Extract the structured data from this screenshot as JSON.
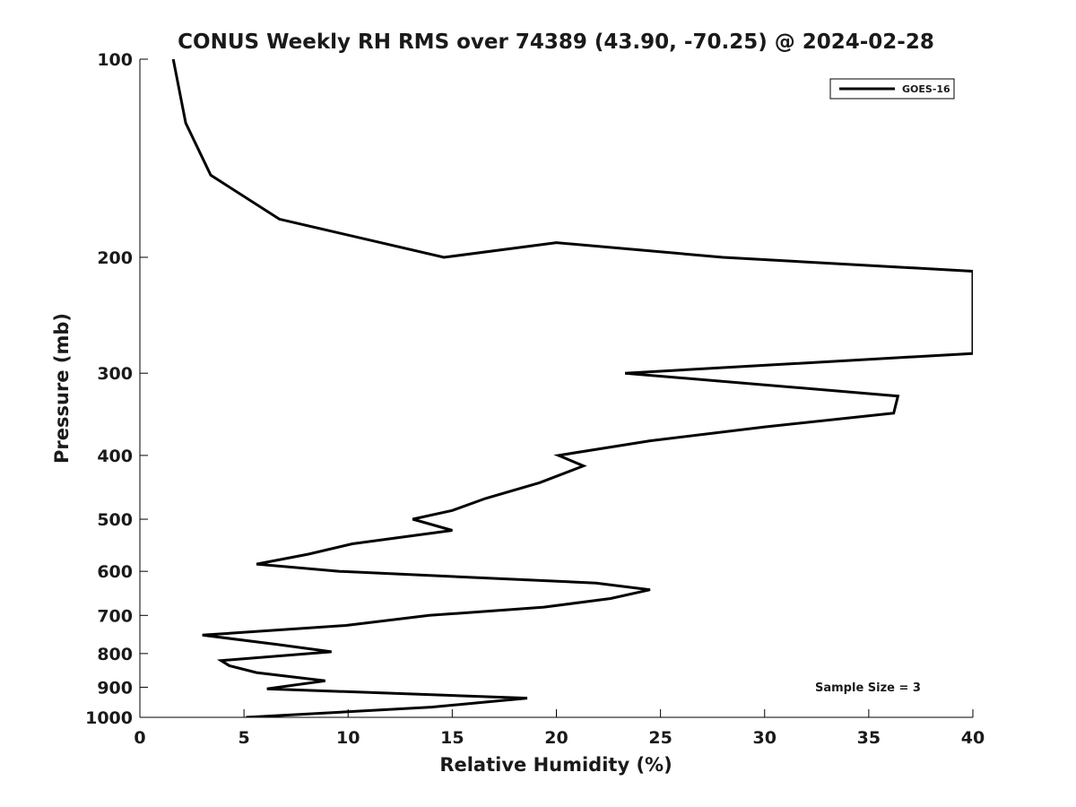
{
  "chart_data": {
    "type": "line",
    "title": "CONUS Weekly RH RMS over 74389 (43.90, -70.25) @ 2024-02-28",
    "xlabel": "Relative Humidity (%)",
    "ylabel": "Pressure (mb)",
    "xlim": [
      0,
      40
    ],
    "ylim": [
      100,
      1000
    ],
    "y_scale": "log",
    "y_reversed": true,
    "x_ticks": [
      "0",
      "5",
      "10",
      "15",
      "20",
      "25",
      "30",
      "35",
      "40"
    ],
    "y_ticks": [
      "100",
      "200",
      "300",
      "400",
      "500",
      "600",
      "700",
      "800",
      "900",
      "1000"
    ],
    "grid": false,
    "legend_position": "top-right",
    "series": [
      {
        "name": "GOES-16",
        "color": "#000000",
        "points": [
          [
            1.6,
            100
          ],
          [
            2.2,
            125
          ],
          [
            3.4,
            150
          ],
          [
            6.7,
            175
          ],
          [
            14.6,
            200
          ],
          [
            20.0,
            190
          ],
          [
            28.0,
            200
          ],
          [
            40.0,
            210
          ],
          [
            40.0,
            280
          ],
          [
            23.3,
            300
          ],
          [
            36.4,
            325
          ],
          [
            36.2,
            345
          ],
          [
            30.0,
            362
          ],
          [
            24.5,
            380
          ],
          [
            20.1,
            400
          ],
          [
            21.3,
            415
          ],
          [
            19.2,
            440
          ],
          [
            16.6,
            465
          ],
          [
            15.0,
            485
          ],
          [
            13.1,
            500
          ],
          [
            15.0,
            520
          ],
          [
            10.2,
            545
          ],
          [
            8.1,
            565
          ],
          [
            5.6,
            585
          ],
          [
            9.6,
            600
          ],
          [
            21.9,
            625
          ],
          [
            24.5,
            640
          ],
          [
            22.6,
            660
          ],
          [
            19.4,
            680
          ],
          [
            13.9,
            700
          ],
          [
            9.9,
            725
          ],
          [
            3.0,
            750
          ],
          [
            6.6,
            775
          ],
          [
            9.2,
            795
          ],
          [
            3.9,
            820
          ],
          [
            4.3,
            835
          ],
          [
            5.6,
            855
          ],
          [
            8.9,
            880
          ],
          [
            6.1,
            905
          ],
          [
            18.6,
            935
          ],
          [
            14.0,
            965
          ],
          [
            5.1,
            1000
          ]
        ]
      }
    ],
    "annotation": "Sample Size = 3"
  }
}
